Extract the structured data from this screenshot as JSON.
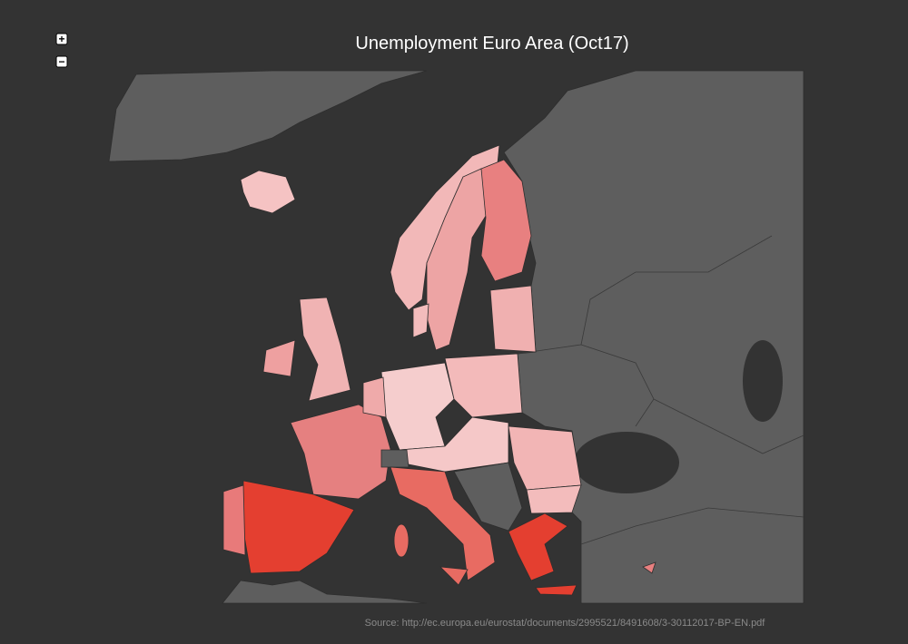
{
  "title": "Unemployment Euro Area (Oct17)",
  "zoom_controls": [
    "+",
    "−"
  ],
  "source": "Source: http://ec.europa.eu/eurostat/documents/2995521/8491608/3-30112017-BP-EN.pdf"
}
